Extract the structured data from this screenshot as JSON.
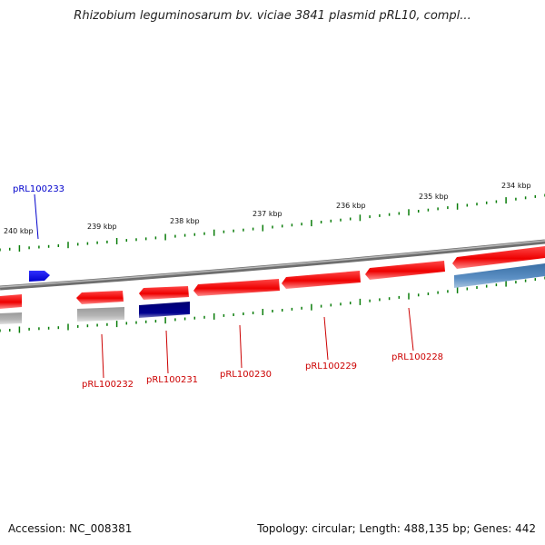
{
  "title": "Rhizobium leguminosarum bv. viciae 3841 plasmid pRL10, compl...",
  "accession_text": "Accession: NC_008381",
  "stats_text": "Topology: circular; Length: 488,135 bp; Genes: 442",
  "scale_labels": [
    "240 kbp",
    "239 kbp",
    "238 kbp",
    "237 kbp",
    "236 kbp",
    "235 kbp",
    "234 kbp"
  ],
  "gene_labels": [
    "pRL100233",
    "pRL100232",
    "pRL100231",
    "pRL100230",
    "pRL100229",
    "pRL100228"
  ],
  "colors": {
    "forward_gene": "#0000ff",
    "reverse_gene": "#ff0000",
    "highlight_gene": "#000080",
    "other_gene": "#4682b4",
    "pseudo_gene": "#aaaaaa",
    "backbone": "#808080",
    "tick": "#008000",
    "label_forward": "#0000cc",
    "label_reverse": "#cc0000"
  }
}
